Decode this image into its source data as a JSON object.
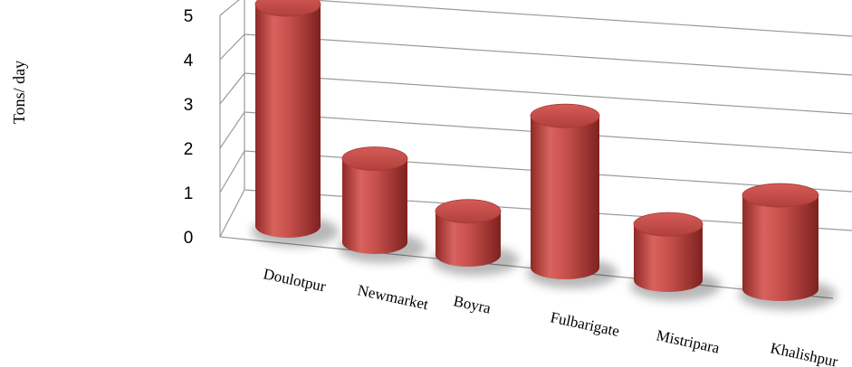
{
  "chart_data": {
    "type": "bar",
    "style": "3d-cylinder",
    "color": "#c0504d",
    "categories": [
      "Doulotpur",
      "Newmarket",
      "Boyra",
      "Fulbarigate",
      "Mistripara",
      "Khalishpur"
    ],
    "values": [
      5.0,
      1.9,
      1.0,
      3.5,
      1.3,
      2.2
    ],
    "ylabel": "Tons/ day",
    "ylim": [
      0,
      5
    ],
    "yticks": [
      "0",
      "1",
      "2",
      "3",
      "4",
      "5"
    ],
    "grid": true
  }
}
